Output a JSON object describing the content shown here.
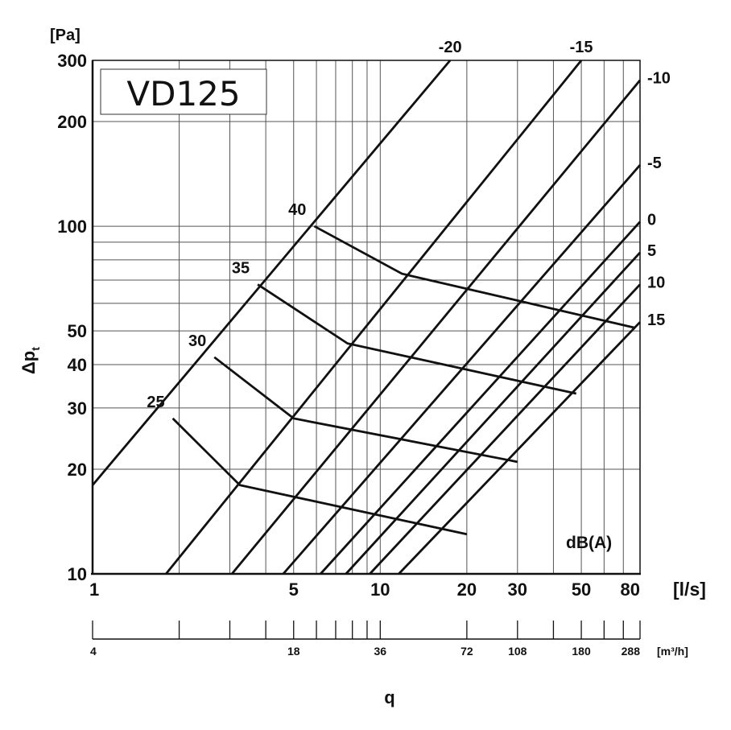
{
  "chart_data": {
    "type": "line",
    "title": "VD125",
    "x_axis": {
      "label": "q",
      "unit": "[l/s]",
      "scale": "log",
      "range": [
        1,
        80
      ],
      "ticks": [
        "1",
        "5",
        "10",
        "20",
        "30",
        "50",
        "80"
      ],
      "grid": [
        1,
        2,
        3,
        4,
        5,
        6,
        7,
        8,
        9,
        10,
        20,
        30,
        40,
        50,
        60,
        70,
        80
      ]
    },
    "secondary_x_axis": {
      "unit": "[m³/h]",
      "ticks": [
        "4",
        "18",
        "36",
        "72",
        "108",
        "180",
        "288"
      ],
      "tick_values_ls": [
        1.111,
        5,
        10,
        20,
        30,
        50,
        80
      ],
      "minor_ls": [
        2,
        3,
        4,
        6,
        7,
        8,
        9,
        40,
        60,
        70
      ]
    },
    "y_axis": {
      "label_main": "Δp",
      "label_sub": "t",
      "unit": "[Pa]",
      "scale": "log",
      "range": [
        10,
        300
      ],
      "ticks": [
        "10",
        "20",
        "30",
        "40",
        "50",
        "100",
        "200",
        "300"
      ],
      "grid": [
        10,
        20,
        30,
        40,
        50,
        60,
        70,
        80,
        90,
        100,
        200,
        300
      ]
    },
    "sound_unit": "dB(A)",
    "sound_lines": [
      {
        "label": "-20",
        "points": [
          [
            1,
            18
          ],
          [
            17.5,
            300
          ]
        ]
      },
      {
        "label": "-15",
        "points": [
          [
            1.8,
            10
          ],
          [
            50,
            300
          ]
        ]
      },
      {
        "label": "-10",
        "points": [
          [
            3.05,
            10
          ],
          [
            80,
            263
          ]
        ]
      },
      {
        "label": "-5",
        "points": [
          [
            4.6,
            10
          ],
          [
            80,
            150
          ]
        ]
      },
      {
        "label": "0",
        "points": [
          [
            6.2,
            10
          ],
          [
            80,
            103
          ]
        ]
      },
      {
        "label": "5",
        "points": [
          [
            7.6,
            10
          ],
          [
            80,
            84
          ]
        ]
      },
      {
        "label": "10",
        "points": [
          [
            9.2,
            10
          ],
          [
            80,
            68
          ]
        ]
      },
      {
        "label": "15",
        "points": [
          [
            11.6,
            10
          ],
          [
            80,
            53
          ]
        ]
      }
    ],
    "setting_lines": [
      {
        "label": "25",
        "points": [
          [
            1.9,
            28
          ],
          [
            3.25,
            18
          ],
          [
            20,
            13
          ]
        ]
      },
      {
        "label": "30",
        "points": [
          [
            2.65,
            42
          ],
          [
            5.0,
            28
          ],
          [
            30,
            21
          ]
        ]
      },
      {
        "label": "35",
        "points": [
          [
            3.75,
            68
          ],
          [
            7.7,
            46
          ],
          [
            48,
            33
          ]
        ]
      },
      {
        "label": "40",
        "points": [
          [
            5.9,
            100
          ],
          [
            11.9,
            73
          ],
          [
            77,
            51
          ]
        ]
      }
    ]
  }
}
